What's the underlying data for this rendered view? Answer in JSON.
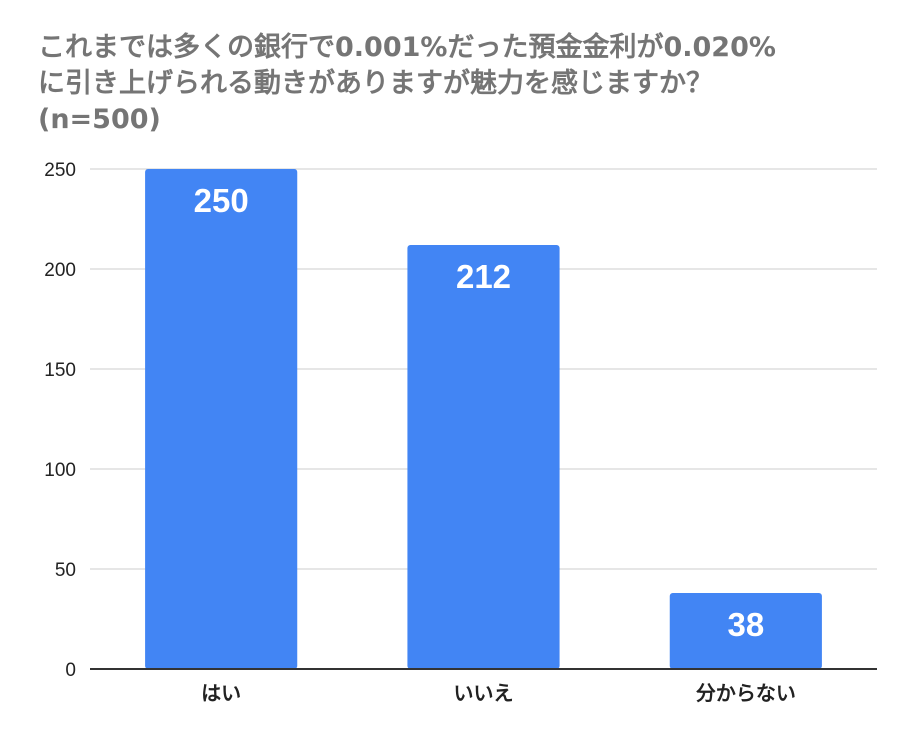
{
  "chart_data": {
    "type": "bar",
    "title_lines": [
      "これまでは多くの銀行で0.001%だった預金金利が0.020%",
      "に引き上げられる動きがありますが魅力を感じますか？",
      "(n=500)"
    ],
    "categories": [
      "はい",
      "いいえ",
      "分からない"
    ],
    "values": [
      250,
      212,
      38
    ],
    "data_labels": [
      "250",
      "212",
      "38"
    ],
    "ylim": [
      0,
      250
    ],
    "yticks": [
      0,
      50,
      100,
      150,
      200,
      250
    ],
    "ytick_labels": [
      "0",
      "50",
      "100",
      "150",
      "200",
      "250"
    ],
    "grid": true,
    "legend": "none",
    "bar_color": "#4285f4",
    "grid_color": "#cccccc",
    "axis_color": "#333333"
  }
}
